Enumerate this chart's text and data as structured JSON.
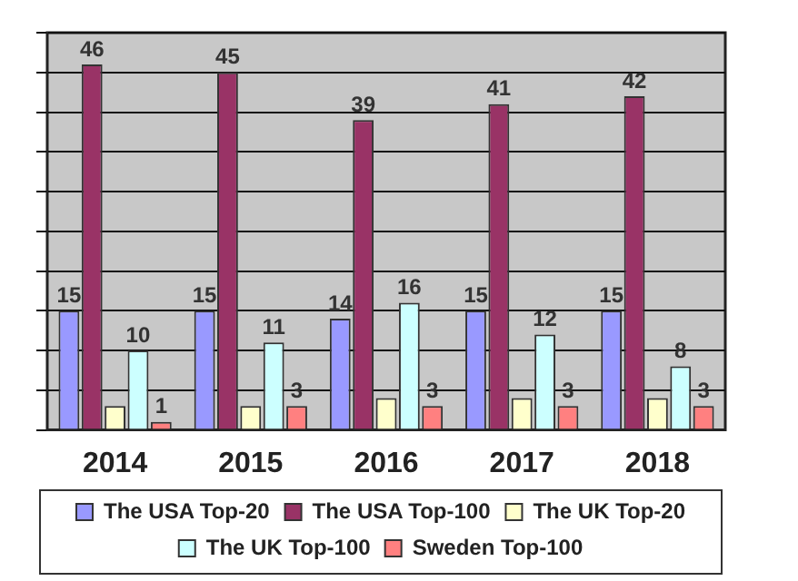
{
  "chart_data": {
    "type": "bar",
    "categories": [
      "2014",
      "2015",
      "2016",
      "2017",
      "2018"
    ],
    "series": [
      {
        "name": "The USA Top-20",
        "color": "#9999ff",
        "values": [
          15,
          15,
          14,
          15,
          15
        ],
        "value_labels": [
          "15",
          "15",
          "14",
          "15",
          "15"
        ]
      },
      {
        "name": "The USA Top-100",
        "color": "#993366",
        "values": [
          46,
          45,
          39,
          41,
          42
        ],
        "value_labels": [
          "46",
          "45",
          "39",
          "41",
          "42"
        ]
      },
      {
        "name": "The UK Top-20",
        "color": "#ffffcc",
        "values": [
          3,
          3,
          4,
          4,
          4
        ]
      },
      {
        "name": "The UK Top-100",
        "color": "#ccffff",
        "values": [
          10,
          11,
          16,
          12,
          8
        ],
        "value_labels": [
          "10",
          "11",
          "16",
          "12",
          "8"
        ]
      },
      {
        "name": "Sweden Top-100",
        "color": "#ff8080",
        "values": [
          1,
          3,
          3,
          3,
          3
        ],
        "value_labels": [
          "1",
          "3",
          "3",
          "3",
          "3"
        ]
      }
    ],
    "ylim": [
      0,
      50
    ],
    "yticks": [
      {
        "value": 0,
        "label": null
      },
      {
        "value": 5,
        "label": null
      },
      {
        "value": 10,
        "label": null
      },
      {
        "value": 15,
        "label": null
      },
      {
        "value": 20,
        "label": null
      },
      {
        "value": 25,
        "label": null
      },
      {
        "value": 30,
        "label": null
      },
      {
        "value": 35,
        "label": null
      },
      {
        "value": 40,
        "label": null
      },
      {
        "value": 45,
        "label": null
      },
      {
        "value": 50,
        "label": null
      }
    ],
    "grid": "y",
    "tick_labels": "x",
    "legend": "bottom"
  }
}
